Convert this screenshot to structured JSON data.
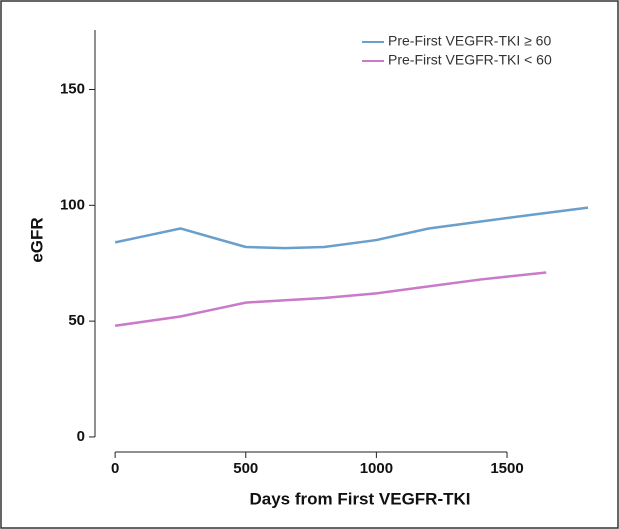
{
  "chart_data": {
    "type": "line",
    "x_label": "Days from First VEGFR-TKI",
    "y_label": "eGFR",
    "series": [
      {
        "name": "Pre-First VEGFR-TKI ≥ 60",
        "color": "#6a9fcc",
        "x": [
          0,
          125,
          250,
          375,
          500,
          650,
          800,
          1000,
          1200,
          1400,
          1600,
          1810
        ],
        "values": [
          84,
          87,
          90,
          86,
          82,
          81.5,
          82,
          85,
          90,
          93,
          96,
          99
        ]
      },
      {
        "name": "Pre-First VEGFR-TKI < 60",
        "color": "#c97ac9",
        "x": [
          0,
          125,
          250,
          375,
          500,
          650,
          800,
          1000,
          1200,
          1400,
          1650
        ],
        "values": [
          48,
          50,
          52,
          55,
          58,
          59,
          60,
          62,
          65,
          68,
          71
        ]
      }
    ],
    "xlim": [
      -77,
      1875
    ],
    "ylim": [
      -6.5,
      180
    ],
    "xticks": [
      0,
      500,
      1000,
      1500
    ],
    "yticks": [
      0,
      50,
      100,
      150
    ],
    "legend_position": "upper right"
  }
}
